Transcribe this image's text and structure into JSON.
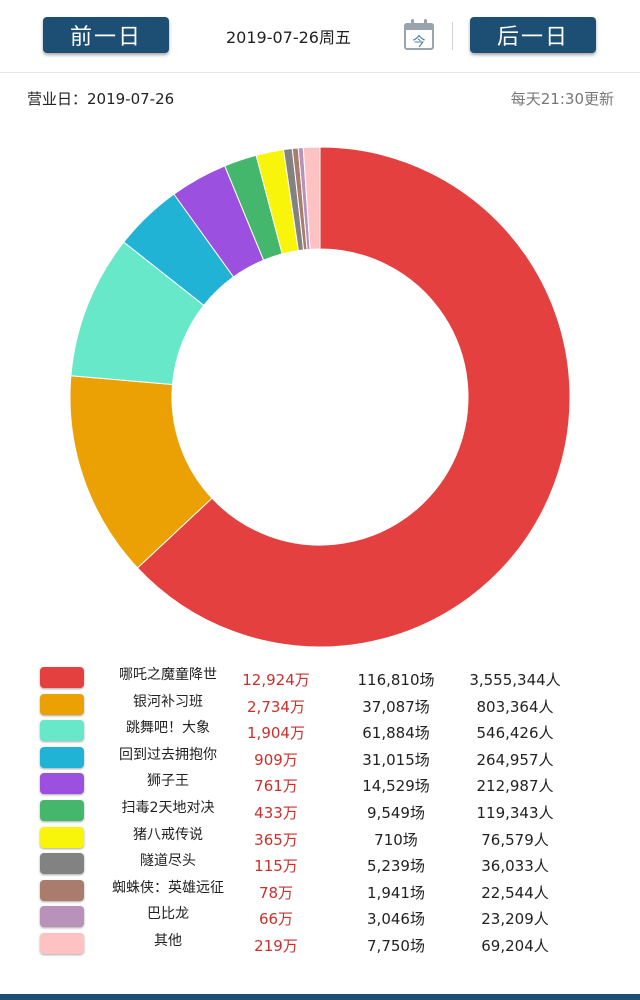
{
  "header": {
    "prev_label": "前一日",
    "date_label": "2019-07-26周五",
    "calendar_label": "今",
    "next_label": "后一日"
  },
  "info": {
    "business_day": "营业日：2019-07-26",
    "update_note": "每天21:30更新"
  },
  "colors": {
    "nav": "#1c4f73"
  },
  "chart_data": {
    "type": "pie",
    "donut": true,
    "start": "top",
    "direction": "clockwise",
    "unit": "万",
    "categories": [
      "哪吒之魔童降世",
      "银河补习班",
      "跳舞吧！大象",
      "回到过去拥抱你",
      "狮子王",
      "扫毒2天地对决",
      "猪八戒传说",
      "隧道尽头",
      "蜘蛛侠：英雄远征",
      "巴比龙",
      "其他"
    ],
    "values": [
      12924,
      2734,
      1904,
      909,
      761,
      433,
      365,
      115,
      78,
      66,
      219
    ],
    "colors": [
      "#e3403f",
      "#eba103",
      "#66e8c9",
      "#21b3d6",
      "#9c50e0",
      "#45b76c",
      "#f8f50a",
      "#828282",
      "#a97c6d",
      "#b892b8",
      "#ffc2c2"
    ]
  },
  "legend": [
    {
      "name": "哪吒之魔童降世",
      "box_office": "12,924万",
      "screenings": "116,810场",
      "audience": "3,555,344人"
    },
    {
      "name": "银河补习班",
      "box_office": "2,734万",
      "screenings": "37,087场",
      "audience": "803,364人"
    },
    {
      "name": "跳舞吧！大象",
      "box_office": "1,904万",
      "screenings": "61,884场",
      "audience": "546,426人"
    },
    {
      "name": "回到过去拥抱你",
      "box_office": "909万",
      "screenings": "31,015场",
      "audience": "264,957人"
    },
    {
      "name": "狮子王",
      "box_office": "761万",
      "screenings": "14,529场",
      "audience": "212,987人"
    },
    {
      "name": "扫毒2天地对决",
      "box_office": "433万",
      "screenings": "9,549场",
      "audience": "119,343人"
    },
    {
      "name": "猪八戒传说",
      "box_office": "365万",
      "screenings": "710场",
      "audience": "76,579人"
    },
    {
      "name": "隧道尽头",
      "box_office": "115万",
      "screenings": "5,239场",
      "audience": "36,033人"
    },
    {
      "name": "蜘蛛侠：英雄远征",
      "box_office": "78万",
      "screenings": "1,941场",
      "audience": "22,544人"
    },
    {
      "name": "巴比龙",
      "box_office": "66万",
      "screenings": "3,046场",
      "audience": "23,209人"
    },
    {
      "name": "其他",
      "box_office": "219万",
      "screenings": "7,750场",
      "audience": "69,204人"
    }
  ]
}
